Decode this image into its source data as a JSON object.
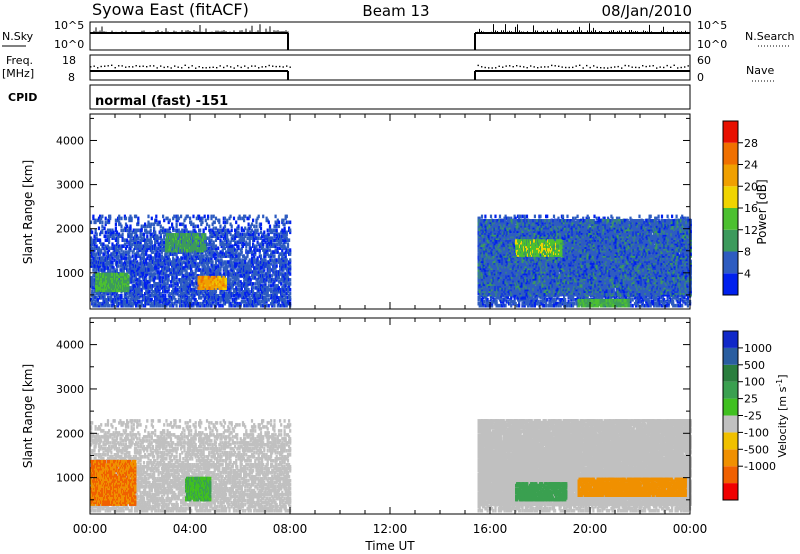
{
  "header": {
    "title": "Syowa East (fitACF)",
    "beam": "Beam 13",
    "date": "08/Jan/2010"
  },
  "strips": {
    "nsky": {
      "label": "N.Sky",
      "ticks": [
        "10^5",
        "10^0"
      ]
    },
    "nsearch": {
      "label": "N.Search",
      "ticks": [
        "10^5",
        "10^0"
      ]
    },
    "freq": {
      "label": "Freq.",
      "unit": "[MHz]",
      "ticks": [
        "18",
        "8"
      ]
    },
    "nave": {
      "label": "Nave",
      "ticks": [
        "60",
        "0"
      ]
    },
    "cpid": {
      "label": "CPID",
      "value": "normal (fast) -151"
    }
  },
  "axes": {
    "ylabel": "Slant Range [km]",
    "yticks": [
      "4000",
      "3000",
      "2000",
      "1000"
    ],
    "xlabel": "Time UT",
    "xticks": [
      "00:00",
      "04:00",
      "08:00",
      "12:00",
      "16:00",
      "20:00",
      "00:00"
    ]
  },
  "colors": {
    "power": [
      "#0020ee",
      "#2e5cc0",
      "#3c9a5c",
      "#4cc030",
      "#f0d400",
      "#f0a000",
      "#f07000",
      "#e81000"
    ],
    "velocity": [
      "#f00000",
      "#f06000",
      "#f09000",
      "#f0c000",
      "#c0c0c0",
      "#40c020",
      "#3aa050",
      "#2a7e3e",
      "#2a5ea0",
      "#1028c8"
    ]
  },
  "chart_data": [
    {
      "type": "heatmap",
      "name": "power",
      "ylabel": "Slant Range [km]",
      "xlabel": "Time UT",
      "xlim": [
        0,
        24
      ],
      "ylim": [
        180,
        4600
      ],
      "colorbar": {
        "label": "Power [dB]",
        "ticks": [
          "28",
          "24",
          "20",
          "16",
          "12",
          "8",
          "4"
        ],
        "range": [
          0,
          32
        ]
      },
      "coverage_hours": [
        [
          0,
          8
        ],
        [
          15.5,
          24
        ]
      ],
      "regions": [
        {
          "t": [
            0,
            8
          ],
          "r": [
            600,
            2200
          ],
          "value": 6
        },
        {
          "t": [
            0.2,
            1.5
          ],
          "r": [
            600,
            1000
          ],
          "value": 12
        },
        {
          "t": [
            3.0,
            4.6
          ],
          "r": [
            1500,
            1900
          ],
          "value": 10
        },
        {
          "t": [
            4.3,
            5.4
          ],
          "r": [
            650,
            900
          ],
          "value": 22
        },
        {
          "t": [
            15.5,
            24
          ],
          "r": [
            500,
            2200
          ],
          "value": 6
        },
        {
          "t": [
            17.0,
            18.8
          ],
          "r": [
            1400,
            1750
          ],
          "value": 14
        },
        {
          "t": [
            19.5,
            21.5
          ],
          "r": [
            250,
            400
          ],
          "value": 12
        }
      ]
    },
    {
      "type": "heatmap",
      "name": "velocity",
      "ylabel": "Slant Range [km]",
      "xlabel": "Time UT",
      "xlim": [
        0,
        24
      ],
      "ylim": [
        180,
        4600
      ],
      "colorbar": {
        "label": "Velocity [m s^-1]",
        "ticks": [
          "1000",
          "500",
          "100",
          "25",
          "-25",
          "-100",
          "-500",
          "-1000"
        ]
      },
      "coverage_hours": [
        [
          0,
          8
        ],
        [
          15.5,
          24
        ]
      ],
      "regions": [
        {
          "t": [
            0,
            8
          ],
          "r": [
            500,
            2300
          ],
          "value": 0
        },
        {
          "t": [
            0,
            1.8
          ],
          "r": [
            400,
            1400
          ],
          "value": -500
        },
        {
          "t": [
            3.8,
            4.8
          ],
          "r": [
            500,
            1000
          ],
          "value": 100
        },
        {
          "t": [
            15.5,
            24
          ],
          "r": [
            400,
            2300
          ],
          "value": 0
        },
        {
          "t": [
            17.0,
            19.0
          ],
          "r": [
            500,
            900
          ],
          "value": 300
        },
        {
          "t": [
            19.5,
            23.8
          ],
          "r": [
            600,
            1000
          ],
          "value": -200
        }
      ]
    }
  ]
}
